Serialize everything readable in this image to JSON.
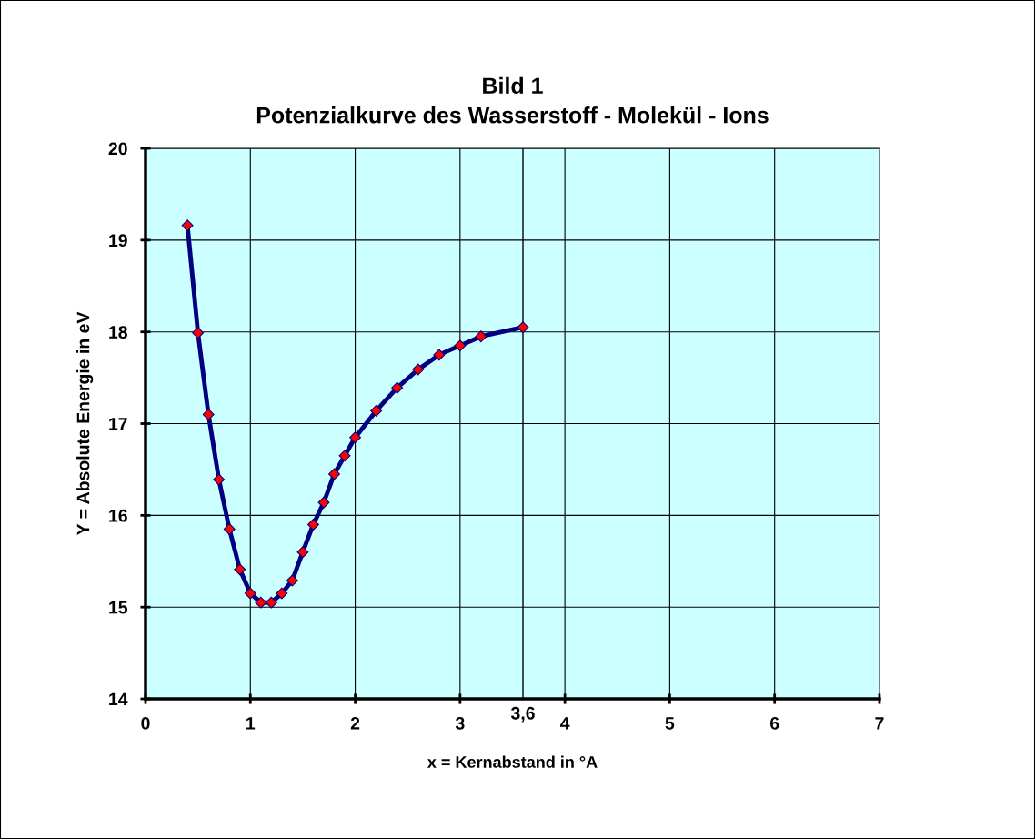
{
  "chart_data": {
    "type": "line",
    "title": "Bild 1\nPotenzialkurve des Wasserstoff - Molekül - Ions",
    "xlabel": "x = Kernabstand in °A",
    "ylabel": "Y = Absolute Energie in eV",
    "x": [
      0.4,
      0.5,
      0.6,
      0.7,
      0.8,
      0.9,
      1.0,
      1.1,
      1.2,
      1.3,
      1.4,
      1.5,
      1.6,
      1.7,
      1.8,
      1.9,
      2.0,
      2.2,
      2.4,
      2.6,
      2.8,
      3.0,
      3.2,
      3.6
    ],
    "series": [
      {
        "color": "#000080",
        "values": [
          19.16,
          17.99,
          17.1,
          16.39,
          15.85,
          15.41,
          15.15,
          15.05,
          15.05,
          15.15,
          15.29,
          15.6,
          15.9,
          16.14,
          16.45,
          16.65,
          16.85,
          17.14,
          17.39,
          17.59,
          17.75,
          17.85,
          17.95,
          18.05
        ]
      }
    ],
    "marker": "diamond",
    "line_style": "solid",
    "xlim": [
      0,
      7
    ],
    "xticks": [
      0,
      1,
      2,
      3,
      4,
      5,
      6,
      7
    ],
    "ylim": [
      14,
      20
    ],
    "yticks": [
      14,
      15,
      16,
      17,
      18,
      19,
      20
    ],
    "grid": true,
    "ref_lines": [
      {
        "axis": "x",
        "value": 3.6,
        "label": "3,6",
        "color": "#000000"
      }
    ]
  }
}
